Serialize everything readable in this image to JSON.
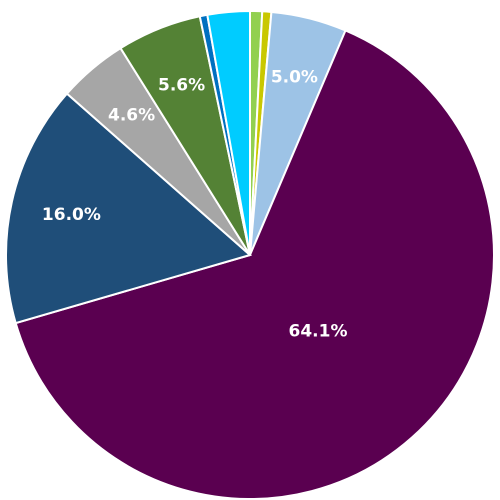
{
  "chart_data": {
    "type": "pie",
    "categories": [
      null,
      null,
      null,
      null,
      null,
      null,
      null,
      null,
      null
    ],
    "values": [
      0.8,
      0.6,
      5.0,
      64.1,
      16.0,
      4.6,
      5.6,
      0.5,
      2.8
    ],
    "value_labels": [
      null,
      null,
      "5.0%",
      "64.1%",
      "16.0%",
      "4.6%",
      "5.6%",
      null,
      null
    ],
    "colors": [
      "#92d050",
      "#c9c800",
      "#9dc3e6",
      "#5a0050",
      "#1f4e79",
      "#a6a6a6",
      "#548235",
      "#0070c0",
      "#00ccff"
    ]
  }
}
